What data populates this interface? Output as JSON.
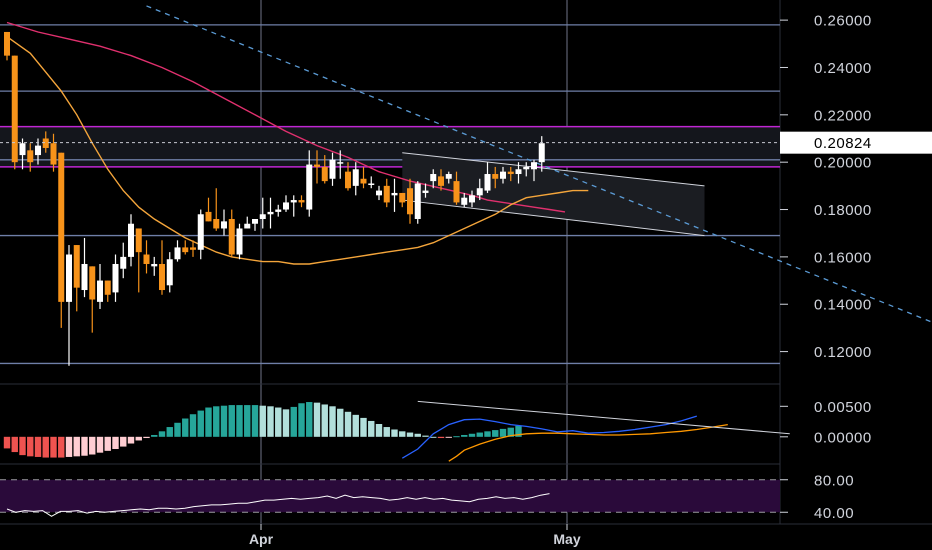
{
  "chart_data": [
    {
      "type": "candlestick",
      "title": "",
      "x_labels": [
        "Apr",
        "May"
      ],
      "y_ticks": [
        "0.26000",
        "0.24000",
        "0.22000",
        "0.20000",
        "0.18000",
        "0.16000",
        "0.14000",
        "0.12000"
      ],
      "y_tick_values": [
        0.26,
        0.24,
        0.22,
        0.2,
        0.18,
        0.16,
        0.14,
        0.12
      ],
      "ylim": [
        0.108,
        0.2685
      ],
      "last_price": 0.20824,
      "last_price_label": "0.20824",
      "colors": {
        "up": "#ffffff",
        "down": "#f7931a",
        "ma_fast": "#f4a53b",
        "ma_slow": "#e0306e",
        "trendline": "#5b9bd5",
        "zone": "#c026d3",
        "channel": "#d1d4dc",
        "level": "#6f7fa8"
      },
      "candles": [
        [
          0.255,
          0.255,
          0.243,
          0.245
        ],
        [
          0.245,
          0.245,
          0.197,
          0.2
        ],
        [
          0.203,
          0.21,
          0.197,
          0.208
        ],
        [
          0.205,
          0.208,
          0.196,
          0.2
        ],
        [
          0.203,
          0.21,
          0.199,
          0.207
        ],
        [
          0.21,
          0.213,
          0.204,
          0.206
        ],
        [
          0.208,
          0.212,
          0.196,
          0.199
        ],
        [
          0.204,
          0.204,
          0.13,
          0.141
        ],
        [
          0.141,
          0.165,
          0.114,
          0.161
        ],
        [
          0.165,
          0.165,
          0.137,
          0.147
        ],
        [
          0.146,
          0.168,
          0.143,
          0.157
        ],
        [
          0.156,
          0.156,
          0.128,
          0.142
        ],
        [
          0.141,
          0.157,
          0.138,
          0.15
        ],
        [
          0.15,
          0.15,
          0.141,
          0.144
        ],
        [
          0.145,
          0.161,
          0.141,
          0.157
        ],
        [
          0.155,
          0.166,
          0.151,
          0.16
        ],
        [
          0.16,
          0.178,
          0.156,
          0.174
        ],
        [
          0.172,
          0.172,
          0.145,
          0.162
        ],
        [
          0.161,
          0.167,
          0.153,
          0.157
        ],
        [
          0.156,
          0.16,
          0.152,
          0.157
        ],
        [
          0.157,
          0.167,
          0.144,
          0.146
        ],
        [
          0.148,
          0.162,
          0.145,
          0.159
        ],
        [
          0.159,
          0.167,
          0.158,
          0.164
        ],
        [
          0.164,
          0.167,
          0.161,
          0.162
        ],
        [
          0.164,
          0.167,
          0.16,
          0.163
        ],
        [
          0.163,
          0.18,
          0.159,
          0.178
        ],
        [
          0.179,
          0.185,
          0.175,
          0.175
        ],
        [
          0.176,
          0.189,
          0.171,
          0.172
        ],
        [
          0.172,
          0.18,
          0.169,
          0.175
        ],
        [
          0.176,
          0.18,
          0.16,
          0.161
        ],
        [
          0.161,
          0.174,
          0.159,
          0.172
        ],
        [
          0.172,
          0.177,
          0.172,
          0.174
        ],
        [
          0.174,
          0.176,
          0.171,
          0.176
        ],
        [
          0.176,
          0.185,
          0.172,
          0.178
        ],
        [
          0.178,
          0.185,
          0.172,
          0.179
        ],
        [
          0.179,
          0.182,
          0.177,
          0.18
        ],
        [
          0.18,
          0.186,
          0.179,
          0.183
        ],
        [
          0.183,
          0.186,
          0.177,
          0.184
        ],
        [
          0.184,
          0.186,
          0.181,
          0.183
        ],
        [
          0.18,
          0.205,
          0.177,
          0.199
        ],
        [
          0.199,
          0.205,
          0.191,
          0.198
        ],
        [
          0.198,
          0.203,
          0.191,
          0.192
        ],
        [
          0.193,
          0.204,
          0.19,
          0.201
        ],
        [
          0.2,
          0.205,
          0.193,
          0.2
        ],
        [
          0.196,
          0.2,
          0.188,
          0.189
        ],
        [
          0.19,
          0.2,
          0.186,
          0.197
        ],
        [
          0.193,
          0.198,
          0.189,
          0.191
        ],
        [
          0.191,
          0.194,
          0.189,
          0.191
        ],
        [
          0.186,
          0.19,
          0.184,
          0.188
        ],
        [
          0.19,
          0.193,
          0.181,
          0.183
        ],
        [
          0.186,
          0.193,
          0.179,
          0.187
        ],
        [
          0.187,
          0.187,
          0.181,
          0.183
        ],
        [
          0.189,
          0.193,
          0.174,
          0.178
        ],
        [
          0.176,
          0.192,
          0.174,
          0.191
        ],
        [
          0.187,
          0.191,
          0.185,
          0.188
        ],
        [
          0.192,
          0.197,
          0.189,
          0.195
        ],
        [
          0.194,
          0.197,
          0.188,
          0.19
        ],
        [
          0.193,
          0.196,
          0.191,
          0.195
        ],
        [
          0.192,
          0.196,
          0.182,
          0.183
        ],
        [
          0.182,
          0.187,
          0.181,
          0.185
        ],
        [
          0.183,
          0.188,
          0.181,
          0.186
        ],
        [
          0.186,
          0.193,
          0.184,
          0.189
        ],
        [
          0.188,
          0.2,
          0.187,
          0.195
        ],
        [
          0.195,
          0.198,
          0.189,
          0.193
        ],
        [
          0.193,
          0.198,
          0.191,
          0.196
        ],
        [
          0.196,
          0.198,
          0.192,
          0.195
        ],
        [
          0.195,
          0.2,
          0.191,
          0.197
        ],
        [
          0.197,
          0.2,
          0.194,
          0.198
        ],
        [
          0.197,
          0.201,
          0.192,
          0.2
        ],
        [
          0.2,
          0.211,
          0.196,
          0.208
        ]
      ],
      "ma_fast": [
        0.253,
        0.246,
        0.238,
        0.23,
        0.22,
        0.208,
        0.197,
        0.188,
        0.181,
        0.176,
        0.172,
        0.168,
        0.165,
        0.162,
        0.16,
        0.159,
        0.158,
        0.158,
        0.157,
        0.157,
        0.158,
        0.159,
        0.16,
        0.161,
        0.162,
        0.163,
        0.164,
        0.166,
        0.169,
        0.172,
        0.175,
        0.178,
        0.182,
        0.185,
        0.186,
        0.187,
        0.188,
        0.188
      ],
      "ma_fast_x": [
        0,
        3,
        5,
        7,
        9,
        11,
        13,
        15,
        17,
        19,
        21,
        23,
        25,
        27,
        29,
        31,
        33,
        35,
        37,
        39,
        41,
        43,
        45,
        47,
        49,
        51,
        53,
        55,
        57,
        59,
        61,
        63,
        65,
        67,
        69,
        71,
        73,
        75
      ],
      "ma_slow": [
        0.259,
        0.255,
        0.252,
        0.249,
        0.245,
        0.24,
        0.234,
        0.227,
        0.22,
        0.213,
        0.207,
        0.202,
        0.196,
        0.192,
        0.189,
        0.186,
        0.184,
        0.183,
        0.182,
        0.181,
        0.18,
        0.179
      ],
      "ma_slow_x": [
        0,
        4,
        8,
        12,
        16,
        20,
        24,
        28,
        32,
        36,
        40,
        44,
        48,
        52,
        56,
        60,
        62,
        64,
        66,
        68,
        70,
        72
      ],
      "horizontal_levels": [
        0.258,
        0.23,
        0.201,
        0.169,
        0.115
      ],
      "zone": [
        0.198,
        0.215
      ],
      "trendline": [
        [
          0.266,
          18
        ],
        [
          0.125,
          125
        ]
      ],
      "channel_upper": [
        [
          0.204,
          51
        ],
        [
          0.19,
          90
        ]
      ],
      "channel_lower": [
        [
          0.184,
          51
        ],
        [
          0.169,
          90
        ]
      ]
    },
    {
      "type": "bar",
      "title": "",
      "y_ticks": [
        "0.00500",
        "0.00000"
      ],
      "y_tick_values": [
        0.005,
        0.0
      ],
      "ylim": [
        -0.0038,
        0.008
      ],
      "colors": {
        "pos_strong": "#26a69a",
        "pos_weak": "#b2dfdb",
        "neg_strong": "#ef5350",
        "neg_weak": "#ffcdd2",
        "macd": "#2962ff",
        "signal": "#ff9800",
        "trend": "#d1d4dc"
      },
      "histogram": [
        -0.0019,
        -0.0025,
        -0.003,
        -0.0032,
        -0.0033,
        -0.0034,
        -0.0034,
        -0.0034,
        -0.0033,
        -0.0032,
        -0.0031,
        -0.0029,
        -0.0026,
        -0.0023,
        -0.002,
        -0.0016,
        -0.0011,
        -0.0006,
        -0.0002,
        0.0003,
        0.0009,
        0.0016,
        0.0023,
        0.003,
        0.0037,
        0.0043,
        0.0048,
        0.005,
        0.0051,
        0.0052,
        0.0052,
        0.0052,
        0.0052,
        0.0051,
        0.005,
        0.0048,
        0.0045,
        0.0049,
        0.0055,
        0.0057,
        0.0056,
        0.0053,
        0.005,
        0.0046,
        0.0041,
        0.0036,
        0.0031,
        0.0026,
        0.0021,
        0.0016,
        0.0012,
        0.0009,
        0.0007,
        0.0005,
        0.0002,
        0.0,
        -0.0002,
        -0.0001,
        0.0001,
        0.0003,
        0.0005,
        0.0007,
        0.0009,
        0.0011,
        0.0013,
        0.0015,
        0.0018
      ],
      "macd_line": [
        -0.0035,
        -0.002,
        0.0005,
        0.002,
        0.0028,
        0.0029,
        0.0025,
        0.002,
        0.0017,
        0.0013,
        0.0008,
        0.001,
        0.0006,
        0.0007,
        0.0009,
        0.0012,
        0.0016,
        0.002,
        0.0026,
        0.0034
      ],
      "macd_x": [
        51,
        53,
        55,
        57,
        59,
        61,
        63,
        65,
        67,
        69,
        71,
        73,
        75,
        77,
        79,
        81,
        83,
        85,
        87,
        89
      ],
      "signal_line": [
        -0.004,
        -0.0032,
        -0.0022,
        -0.0012,
        -0.0004,
        0.0002,
        0.0005,
        0.0006,
        0.0006,
        0.0005,
        0.0004,
        0.0003,
        0.0003,
        0.0004,
        0.0005,
        0.0007,
        0.0009,
        0.0012,
        0.0016,
        0.002
      ],
      "signal_x": [
        57,
        58,
        59,
        61,
        63,
        65,
        67,
        69,
        71,
        73,
        75,
        77,
        79,
        81,
        83,
        85,
        87,
        89,
        91,
        93
      ],
      "trend_from": [
        0.0058,
        53
      ],
      "trend_to": [
        0.0005,
        101
      ]
    },
    {
      "type": "line",
      "title": "",
      "y_ticks": [
        "80.00",
        "40.00"
      ],
      "y_tick_values": [
        80,
        40
      ],
      "ylim": [
        28,
        92
      ],
      "colors": {
        "line": "#ffffff",
        "band": "#2a0a3a",
        "bound": "#9a9aa0"
      },
      "band": [
        40,
        80
      ],
      "values": [
        44,
        40,
        42,
        41,
        42,
        35,
        41,
        41,
        42,
        39,
        41,
        40,
        41,
        42,
        43,
        44,
        43,
        45,
        45,
        44,
        45,
        47,
        48,
        49,
        49,
        50,
        51,
        51,
        53,
        55,
        55,
        56,
        57,
        56,
        57,
        58,
        60,
        57,
        61,
        58,
        59,
        58,
        57,
        55,
        56,
        58,
        56,
        58,
        56,
        57,
        55,
        54,
        53,
        56,
        57,
        59,
        57,
        58,
        56,
        58,
        61,
        63
      ]
    }
  ],
  "time_axis": {
    "labels": [
      "Apr",
      "May"
    ]
  }
}
